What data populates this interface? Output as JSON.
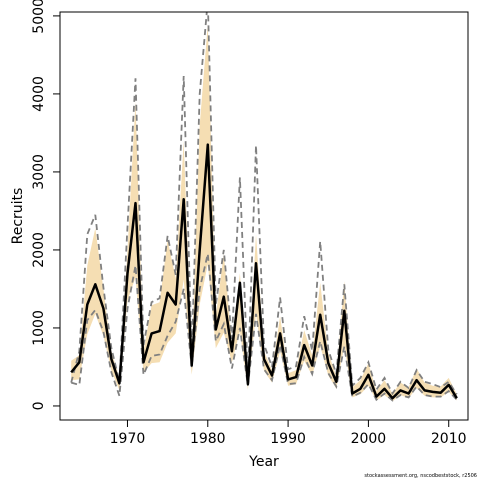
{
  "chart_data": {
    "type": "line",
    "xlabel": "Year",
    "ylabel": "Recruits",
    "xlim": [
      1961.6,
      2012.4
    ],
    "ylim": [
      -180,
      5050
    ],
    "x_ticks": [
      "1970",
      "1980",
      "1990",
      "2000",
      "2010"
    ],
    "y_ticks": [
      "0",
      "1000",
      "2000",
      "3000",
      "4000",
      "5000"
    ],
    "grid": false,
    "legend": "none",
    "colors": {
      "median": "#000000",
      "band": "#f5deb3",
      "dashed": "#808080"
    },
    "x": [
      1963,
      1964,
      1965,
      1966,
      1967,
      1968,
      1969,
      1970,
      1971,
      1972,
      1973,
      1974,
      1975,
      1976,
      1977,
      1978,
      1979,
      1980,
      1981,
      1982,
      1983,
      1984,
      1985,
      1986,
      1987,
      1988,
      1989,
      1990,
      1991,
      1992,
      1993,
      1994,
      1995,
      1996,
      1997,
      1998,
      1999,
      2000,
      2001,
      2002,
      2003,
      2004,
      2005,
      2006,
      2007,
      2008,
      2009,
      2010,
      2011
    ],
    "series": [
      {
        "role": "median",
        "values": [
          430,
          560,
          1300,
          1560,
          1250,
          600,
          290,
          1700,
          2600,
          560,
          930,
          960,
          1450,
          1300,
          2650,
          520,
          2000,
          3350,
          980,
          1400,
          700,
          1580,
          280,
          1830,
          600,
          390,
          930,
          340,
          370,
          780,
          520,
          1170,
          550,
          310,
          1220,
          160,
          220,
          400,
          120,
          220,
          100,
          200,
          160,
          330,
          200,
          180,
          170,
          270,
          100
        ]
      },
      {
        "role": "band_upper",
        "values": [
          580,
          650,
          1800,
          2280,
          1500,
          700,
          360,
          2000,
          3900,
          700,
          1290,
          1330,
          2130,
          1630,
          3400,
          620,
          3600,
          4900,
          1150,
          1950,
          820,
          1700,
          340,
          2200,
          700,
          460,
          1150,
          420,
          460,
          970,
          650,
          1580,
          680,
          380,
          1600,
          240,
          330,
          550,
          190,
          330,
          160,
          300,
          240,
          480,
          300,
          260,
          250,
          360,
          150
        ]
      },
      {
        "role": "band_lower",
        "values": [
          330,
          340,
          920,
          1180,
          900,
          450,
          200,
          1350,
          1650,
          430,
          550,
          560,
          810,
          930,
          1620,
          400,
          1300,
          1820,
          740,
          940,
          560,
          960,
          210,
          1180,
          450,
          300,
          700,
          260,
          280,
          580,
          390,
          770,
          390,
          220,
          770,
          110,
          150,
          260,
          70,
          140,
          60,
          140,
          100,
          230,
          130,
          110,
          110,
          180,
          70
        ]
      },
      {
        "role": "dashed_upper",
        "values": [
          300,
          700,
          2200,
          2450,
          1520,
          740,
          310,
          2300,
          4200,
          780,
          1330,
          1380,
          2180,
          1680,
          4230,
          680,
          4000,
          5200,
          1300,
          2000,
          860,
          2930,
          370,
          3340,
          790,
          500,
          1390,
          470,
          510,
          1150,
          710,
          2110,
          720,
          410,
          1560,
          260,
          360,
          560,
          210,
          360,
          160,
          310,
          230,
          460,
          310,
          280,
          240,
          310,
          150
        ]
      },
      {
        "role": "dashed_lower",
        "values": [
          300,
          270,
          1100,
          1230,
          950,
          430,
          130,
          1250,
          1800,
          400,
          640,
          660,
          900,
          1080,
          1500,
          500,
          1500,
          1950,
          830,
          1050,
          480,
          1000,
          260,
          1180,
          470,
          330,
          780,
          280,
          290,
          630,
          410,
          830,
          420,
          250,
          760,
          120,
          170,
          280,
          80,
          160,
          70,
          140,
          110,
          250,
          140,
          120,
          120,
          190,
          80
        ]
      }
    ]
  },
  "footer": {
    "credit": "stockassessment.org, nscodbeststock, r2506"
  }
}
